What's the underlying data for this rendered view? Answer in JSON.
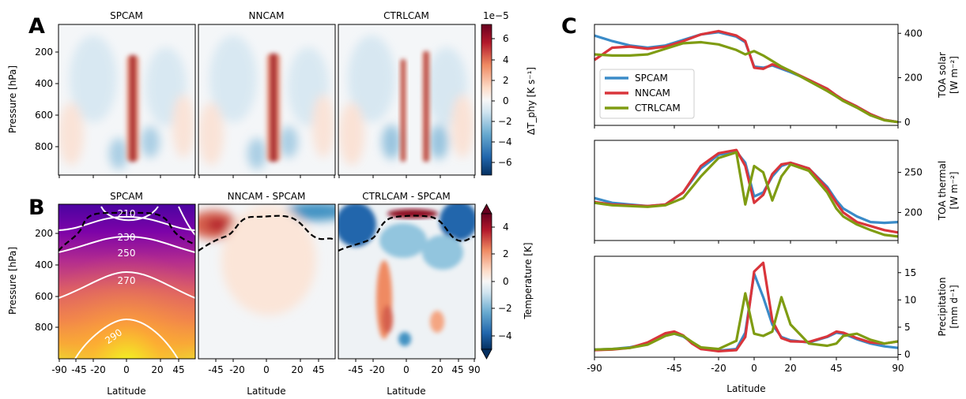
{
  "colors": {
    "spcam": "#3a8bc8",
    "nncam": "#d9353b",
    "ctrlcam": "#7f9c12",
    "contour": "#ffffff",
    "dashed": "#000000"
  },
  "panel_letters": {
    "a": "A",
    "b": "B",
    "c": "C"
  },
  "panel_a": {
    "subplot_titles": [
      "SPCAM",
      "NNCAM",
      "CTRLCAM"
    ],
    "ylabel": "Pressure [hPa]",
    "yticks": [
      "200",
      "400",
      "600",
      "800"
    ],
    "colorbar": {
      "label": "ΔT_phy [K s⁻¹]",
      "exponent": "1e−5",
      "ticks": [
        "6",
        "4",
        "2",
        "0",
        "−2",
        "−4",
        "−6"
      ],
      "colormap": "RdBu_r",
      "range": [
        -7,
        7
      ]
    }
  },
  "panel_b": {
    "subplot_titles": [
      "SPCAM",
      "NNCAM - SPCAM",
      "CTRLCAM - SPCAM"
    ],
    "ylabel": "Pressure [hPa]",
    "yticks": [
      "200",
      "400",
      "600",
      "800"
    ],
    "xlabel": "Latitude",
    "xticks_first": [
      "-90",
      "-45",
      "-20",
      "0",
      "20",
      "45"
    ],
    "xticks_mid": [
      "-45",
      "-20",
      "0",
      "20",
      "45"
    ],
    "xticks_last": [
      "-45",
      "-20",
      "0",
      "20",
      "45",
      "90"
    ],
    "contour_labels": [
      "210",
      "230",
      "250",
      "270",
      "290"
    ],
    "colorbar": {
      "label": "Temperature [K]",
      "ticks": [
        "4",
        "2",
        "0",
        "−2",
        "−4"
      ],
      "colormap": "RdBu_r",
      "range": [
        -5,
        5
      ]
    }
  },
  "chart_data": [
    {
      "type": "line",
      "title": "",
      "xlabel": "",
      "ylabel": "TOA solar [W m⁻²]",
      "ylim": [
        -15,
        440
      ],
      "yticks": [
        "400",
        "200",
        "0"
      ],
      "legend": {
        "placement": "left",
        "entries": [
          "SPCAM",
          "NNCAM",
          "CTRLCAM"
        ]
      },
      "x": [
        -90,
        -80,
        -70,
        -60,
        -50,
        -40,
        -30,
        -20,
        -10,
        -5,
        0,
        5,
        10,
        15,
        20,
        30,
        40,
        45,
        50,
        60,
        70,
        80,
        90
      ],
      "series": [
        {
          "name": "SPCAM",
          "values": [
            390,
            365,
            345,
            335,
            345,
            370,
            395,
            405,
            385,
            360,
            250,
            245,
            255,
            240,
            225,
            190,
            150,
            120,
            100,
            70,
            35,
            10,
            0
          ]
        },
        {
          "name": "NNCAM",
          "values": [
            280,
            335,
            340,
            330,
            340,
            365,
            395,
            410,
            390,
            365,
            245,
            240,
            260,
            245,
            230,
            190,
            150,
            120,
            100,
            70,
            35,
            10,
            0
          ]
        },
        {
          "name": "CTRLCAM",
          "values": [
            305,
            300,
            300,
            305,
            330,
            355,
            360,
            350,
            325,
            305,
            320,
            300,
            275,
            250,
            230,
            185,
            140,
            115,
            95,
            65,
            30,
            8,
            0
          ]
        }
      ]
    },
    {
      "type": "line",
      "title": "",
      "xlabel": "",
      "ylabel": "TOA thermal [W m⁻²]",
      "ylim": [
        165,
        290
      ],
      "yticks": [
        "250",
        "200"
      ],
      "x": [
        -90,
        -80,
        -70,
        -60,
        -50,
        -40,
        -30,
        -20,
        -10,
        -5,
        0,
        5,
        10,
        15,
        20,
        30,
        40,
        45,
        50,
        60,
        70,
        80,
        90
      ],
      "series": [
        {
          "name": "SPCAM",
          "values": [
            218,
            212,
            210,
            208,
            210,
            225,
            255,
            272,
            276,
            262,
            220,
            225,
            245,
            258,
            262,
            255,
            232,
            215,
            205,
            195,
            188,
            187,
            188
          ]
        },
        {
          "name": "NNCAM",
          "values": [
            213,
            210,
            209,
            208,
            210,
            225,
            258,
            274,
            278,
            258,
            212,
            222,
            248,
            260,
            262,
            255,
            230,
            212,
            200,
            188,
            183,
            178,
            175
          ]
        },
        {
          "name": "CTRLCAM",
          "values": [
            212,
            209,
            208,
            207,
            209,
            218,
            245,
            268,
            275,
            210,
            258,
            250,
            215,
            245,
            260,
            252,
            225,
            205,
            195,
            185,
            178,
            172,
            170
          ]
        }
      ]
    },
    {
      "type": "line",
      "title": "",
      "xlabel": "Latitude",
      "ylabel": "Precipitation [mm d⁻¹]",
      "ylim": [
        -0.5,
        18
      ],
      "yticks": [
        "15",
        "10",
        "5",
        "0"
      ],
      "xticks": [
        "-90",
        "-45",
        "-20",
        "0",
        "20",
        "45",
        "90"
      ],
      "x": [
        -90,
        -80,
        -70,
        -60,
        -50,
        -45,
        -40,
        -35,
        -30,
        -20,
        -10,
        -5,
        0,
        5,
        10,
        15,
        20,
        30,
        40,
        45,
        50,
        60,
        70,
        80,
        90
      ],
      "series": [
        {
          "name": "SPCAM",
          "values": [
            0.9,
            1.0,
            1.3,
            2.0,
            3.5,
            3.8,
            3.3,
            2.2,
            1.2,
            0.7,
            1.0,
            4.0,
            14.8,
            10.5,
            5.5,
            3.2,
            2.6,
            2.2,
            3.2,
            4.0,
            3.8,
            2.8,
            2.0,
            1.5,
            1.2
          ]
        },
        {
          "name": "NNCAM",
          "values": [
            0.8,
            0.9,
            1.2,
            2.2,
            3.9,
            4.2,
            3.5,
            2.0,
            1.0,
            0.6,
            0.8,
            3.2,
            15.2,
            16.8,
            6.2,
            3.0,
            2.4,
            2.3,
            3.3,
            4.2,
            4.0,
            3.0,
            2.2,
            2.0,
            2.4
          ]
        },
        {
          "name": "CTRLCAM",
          "values": [
            0.9,
            1.0,
            1.2,
            1.8,
            3.4,
            3.8,
            3.4,
            2.3,
            1.3,
            1.0,
            2.5,
            11.2,
            3.8,
            3.4,
            4.2,
            10.5,
            5.5,
            2.0,
            1.6,
            2.0,
            3.4,
            3.8,
            2.7,
            2.0,
            2.4
          ]
        }
      ]
    }
  ]
}
